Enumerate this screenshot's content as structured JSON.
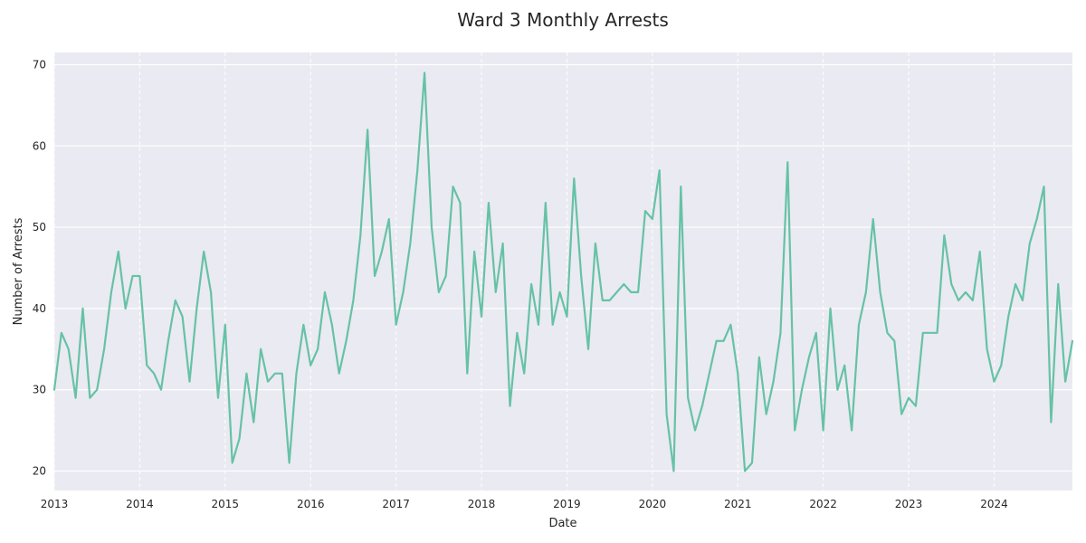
{
  "chart_data": {
    "type": "line",
    "title": "Ward 3 Monthly Arrests",
    "xlabel": "Date",
    "ylabel": "Number of Arrests",
    "x_start": "2013-01",
    "x_end": "2024-12",
    "xlim": [
      "2013-01",
      "2024-12"
    ],
    "ylim": [
      17.6,
      71.5
    ],
    "x_ticks": [
      "2013",
      "2014",
      "2015",
      "2016",
      "2017",
      "2018",
      "2019",
      "2020",
      "2021",
      "2022",
      "2023",
      "2024"
    ],
    "y_ticks": [
      20,
      30,
      40,
      50,
      60,
      70
    ],
    "grid": true,
    "line_color": "#66c2a5",
    "background_color": "#eaeaf2",
    "series": [
      {
        "values": [
          30,
          37,
          35,
          29,
          40,
          29,
          30,
          35,
          42,
          47,
          40,
          44,
          44,
          33,
          32,
          30,
          36,
          41,
          39,
          31,
          40,
          47,
          42,
          29,
          38,
          21,
          24,
          32,
          26,
          35,
          31,
          32,
          32,
          21,
          32,
          38,
          33,
          35,
          42,
          38,
          32,
          36,
          41,
          49,
          62,
          44,
          47,
          51,
          38,
          42,
          48,
          57,
          69,
          50,
          42,
          44,
          55,
          53,
          32,
          47,
          39,
          53,
          42,
          48,
          28,
          37,
          32,
          43,
          38,
          53,
          38,
          42,
          39,
          56,
          44,
          35,
          48,
          41,
          41,
          42,
          43,
          42,
          42,
          52,
          51,
          57,
          27,
          20,
          55,
          29,
          25,
          28,
          32,
          36,
          36,
          38,
          32,
          20,
          21,
          34,
          27,
          31,
          37,
          58,
          25,
          30,
          34,
          37,
          25,
          40,
          30,
          33,
          25,
          38,
          42,
          51,
          42,
          37,
          36,
          27,
          29,
          28,
          37,
          37,
          37,
          49,
          43,
          41,
          42,
          41,
          47,
          35,
          31,
          33,
          39,
          43,
          41,
          48,
          51,
          55,
          26,
          43,
          31,
          36
        ]
      }
    ]
  }
}
